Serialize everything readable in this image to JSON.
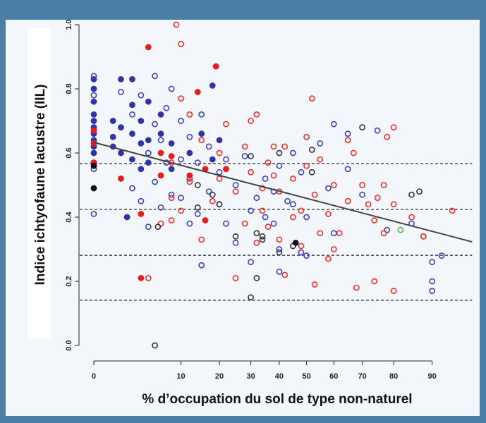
{
  "chart_data": {
    "type": "scatter",
    "xlabel": "% d’occupation du sol de type non-naturel",
    "ylabel": "Indice ichtyofaune lacustre (IIL)",
    "xscale": "arcsine-sqrt",
    "xlim": [
      0,
      97
    ],
    "ylim": [
      0,
      1
    ],
    "xticks": [
      0,
      10,
      20,
      30,
      40,
      50,
      60,
      70,
      80,
      90
    ],
    "yticks": [
      {
        "value": 0,
        "label": "0.0"
      },
      0.2,
      0.4,
      0.6,
      0.8,
      {
        "value": 1,
        "label": "1.0"
      }
    ],
    "reference_lines": [
      0.567,
      0.424,
      0.281,
      0.141
    ],
    "trend_line": {
      "x": [
        0,
        97
      ],
      "y": [
        0.633,
        0.323
      ],
      "color": "#444444"
    },
    "series": [
      {
        "color": "#2e35a8",
        "filled": true,
        "x": [
          0,
          0,
          0,
          0,
          0,
          0,
          0,
          0,
          0,
          0,
          0,
          0.5,
          0.5,
          0.5,
          1,
          1,
          1,
          2,
          2,
          2,
          2,
          3,
          3,
          3,
          4,
          4,
          4,
          6,
          6,
          8,
          8,
          12,
          15,
          18,
          18,
          20,
          1.5
        ],
        "y": [
          0.83,
          0.8,
          0.76,
          0.72,
          0.7,
          0.68,
          0.66,
          0.64,
          0.62,
          0.6,
          0.57,
          0.65,
          0.7,
          0.62,
          0.83,
          0.68,
          0.6,
          0.83,
          0.75,
          0.66,
          0.58,
          0.7,
          0.63,
          0.55,
          0.76,
          0.64,
          0.57,
          0.72,
          0.66,
          0.63,
          0.55,
          0.6,
          0.66,
          0.81,
          0.58,
          0.64,
          0.4
        ]
      },
      {
        "color": "#3a42b8",
        "filled": false,
        "x": [
          0,
          0,
          0,
          0,
          1,
          1,
          2,
          2,
          3,
          3,
          4,
          4,
          5,
          5,
          5,
          6,
          6,
          7,
          7,
          8,
          8,
          10,
          10,
          10,
          12,
          12,
          12,
          14,
          14,
          15,
          15,
          17,
          17,
          20,
          20,
          22,
          22,
          25,
          25,
          28,
          30,
          30,
          32,
          35,
          35,
          38,
          38,
          40,
          40,
          40,
          43,
          45,
          45,
          48,
          48,
          50,
          50,
          55,
          58,
          60,
          60,
          65,
          65,
          70,
          75,
          78,
          85,
          88,
          90,
          90,
          90,
          92
        ],
        "y": [
          0.84,
          0.78,
          0.55,
          0.41,
          0.79,
          0.52,
          0.72,
          0.49,
          0.78,
          0.45,
          0.6,
          0.37,
          0.84,
          0.69,
          0.51,
          0.64,
          0.43,
          0.74,
          0.57,
          0.8,
          0.47,
          0.7,
          0.58,
          0.46,
          0.65,
          0.52,
          0.38,
          0.57,
          0.41,
          0.72,
          0.25,
          0.62,
          0.48,
          0.54,
          0.44,
          0.58,
          0.38,
          0.5,
          0.32,
          0.59,
          0.42,
          0.26,
          0.46,
          0.52,
          0.4,
          0.48,
          0.38,
          0.56,
          0.3,
          0.23,
          0.45,
          0.6,
          0.44,
          0.54,
          0.29,
          0.4,
          0.28,
          0.63,
          0.49,
          0.69,
          0.35,
          0.66,
          0.55,
          0.47,
          0.67,
          0.36,
          0.38,
          0.34,
          0.26,
          0.17,
          0.2,
          0.28
        ]
      },
      {
        "color": "#e8302c",
        "filled": false,
        "x": [
          4,
          6,
          8,
          8,
          8,
          9,
          10,
          10,
          10,
          12,
          12,
          15,
          15,
          18,
          20,
          20,
          22,
          25,
          25,
          28,
          28,
          30,
          30,
          32,
          32,
          34,
          34,
          36,
          36,
          38,
          38,
          40,
          40,
          42,
          42,
          45,
          45,
          48,
          48,
          50,
          50,
          52,
          53,
          53,
          55,
          55,
          58,
          58,
          60,
          60,
          62,
          65,
          65,
          67,
          68,
          70,
          72,
          74,
          74,
          75,
          77,
          77,
          78,
          80,
          80,
          80,
          85,
          88,
          94
        ],
        "y": [
          0.21,
          0.38,
          0.57,
          0.46,
          0.39,
          1.0,
          0.77,
          0.94,
          0.42,
          0.72,
          0.51,
          0.64,
          0.33,
          0.45,
          0.52,
          0.6,
          0.69,
          0.48,
          0.21,
          0.38,
          0.62,
          0.7,
          0.54,
          0.72,
          0.32,
          0.49,
          0.42,
          0.57,
          0.37,
          0.62,
          0.53,
          0.33,
          0.48,
          0.22,
          0.62,
          0.52,
          0.4,
          0.42,
          0.31,
          0.65,
          0.56,
          0.77,
          0.19,
          0.47,
          0.58,
          0.35,
          0.41,
          0.27,
          0.5,
          0.3,
          0.35,
          0.64,
          0.45,
          0.6,
          0.18,
          0.5,
          0.44,
          0.2,
          0.39,
          0.46,
          0.5,
          0.35,
          0.65,
          0.68,
          0.44,
          0.17,
          0.4,
          0.34,
          0.42
        ]
      },
      {
        "color": "#e81c1c",
        "filled": true,
        "x": [
          0,
          0,
          0,
          1,
          4,
          3,
          3,
          6,
          6,
          8,
          12,
          14,
          16,
          16,
          19,
          22
        ],
        "y": [
          0.67,
          0.63,
          0.57,
          0.52,
          0.93,
          0.41,
          0.21,
          0.6,
          0.53,
          0.59,
          0.53,
          0.79,
          0.55,
          0.39,
          0.87,
          0.55
        ]
      },
      {
        "color": "#333333",
        "filled": false,
        "x": [
          14,
          14,
          18,
          20,
          25,
          30,
          30,
          32,
          32,
          34,
          34,
          40,
          40,
          45,
          52,
          52,
          70,
          85,
          87,
          5,
          5.5
        ],
        "y": [
          0.43,
          0.5,
          0.47,
          0.44,
          0.34,
          0.15,
          0.59,
          0.21,
          0.35,
          0.34,
          0.33,
          0.29,
          0.6,
          0.31,
          0.54,
          0.61,
          0.68,
          0.47,
          0.48,
          0.0,
          0.37
        ]
      },
      {
        "color": "#111111",
        "filled": true,
        "x": [
          0,
          0,
          46
        ],
        "y": [
          0.49,
          0.56,
          0.32
        ]
      },
      {
        "color": "#4cb848",
        "filled": false,
        "x": [
          82
        ],
        "y": [
          0.36
        ]
      }
    ]
  }
}
